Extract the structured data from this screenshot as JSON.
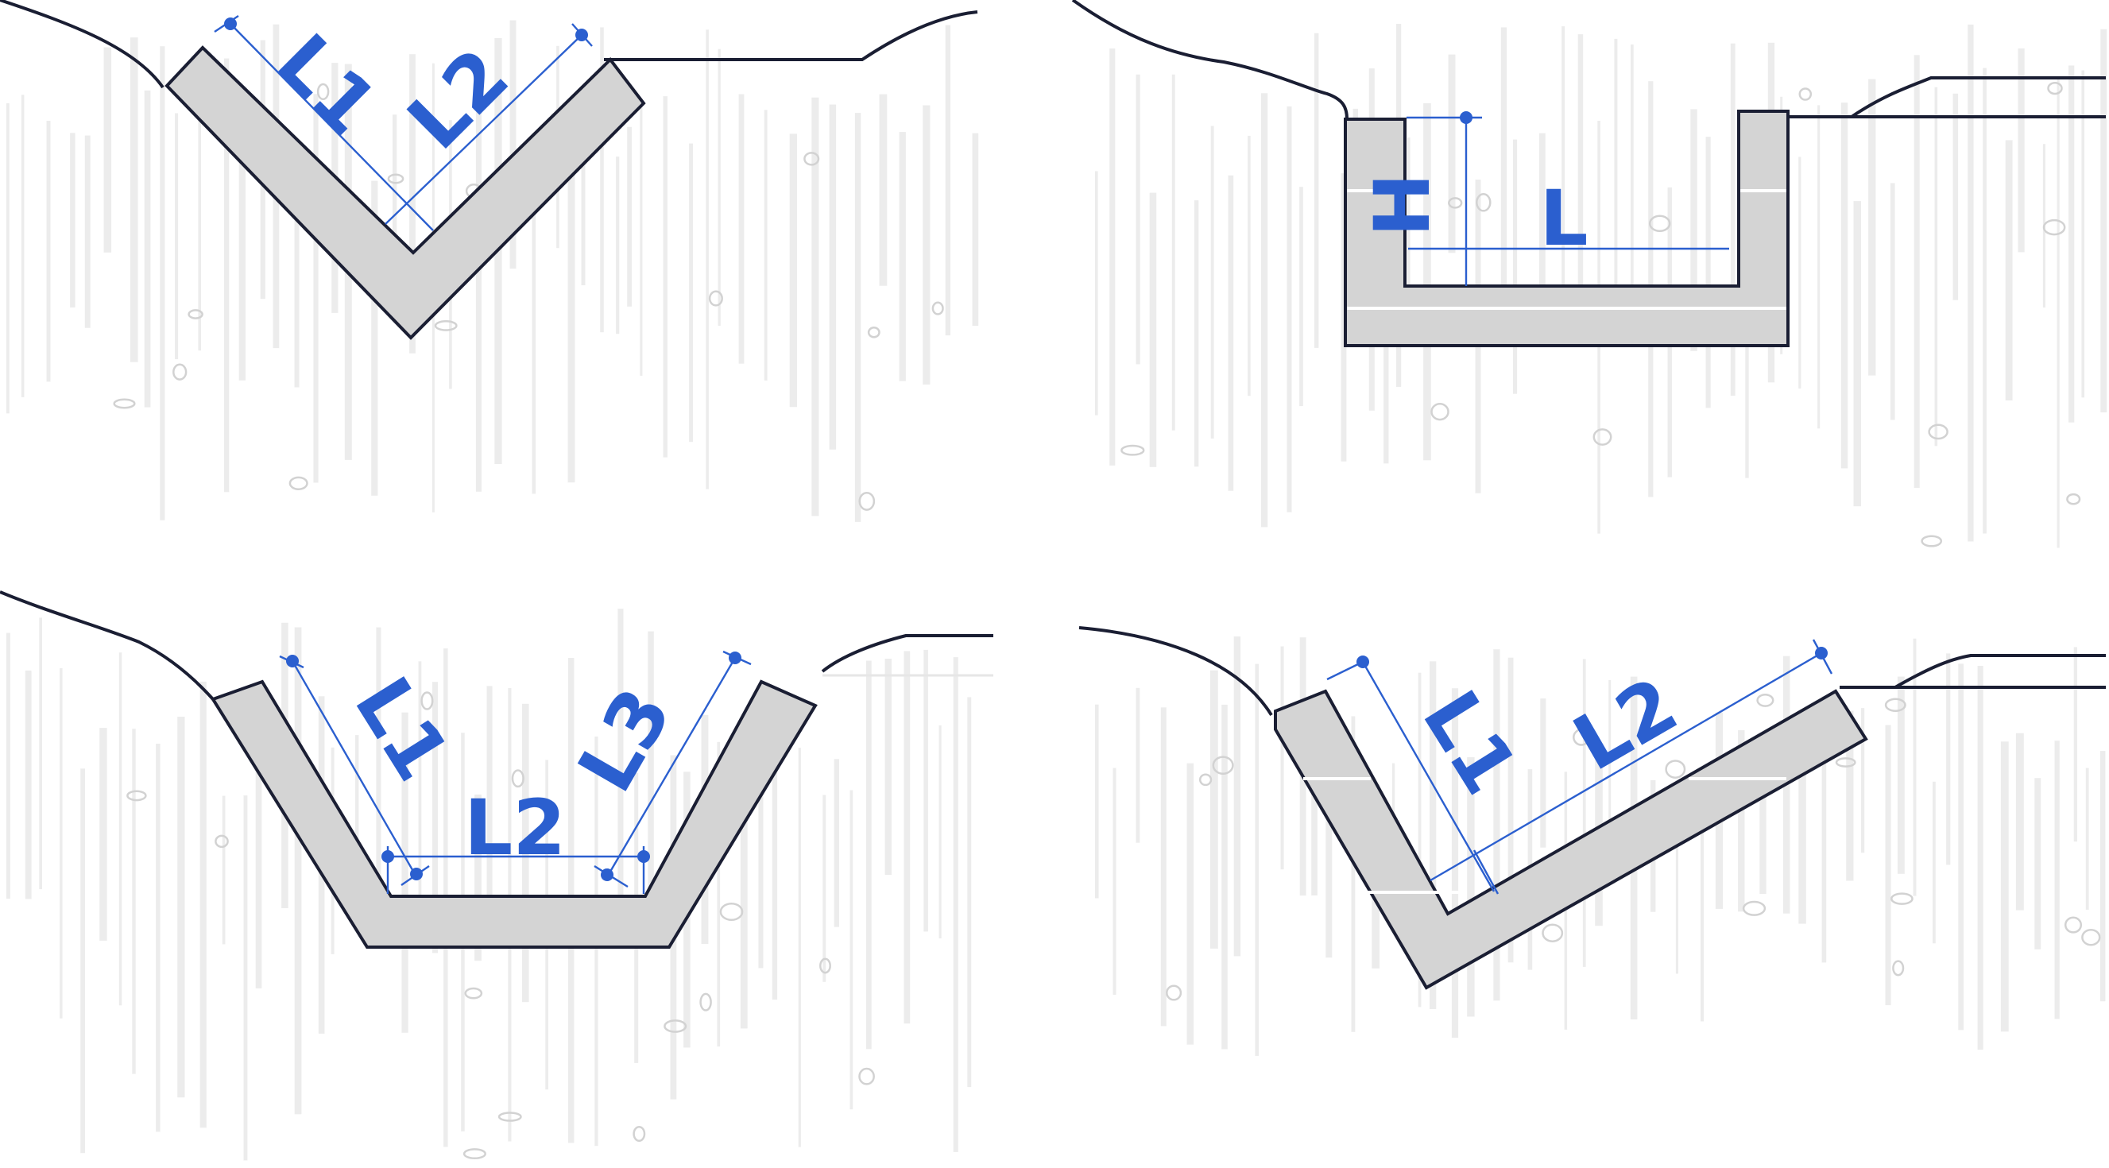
{
  "diagrams": [
    {
      "id": "v-shape",
      "labels": [
        "L1",
        "L2"
      ]
    },
    {
      "id": "rectangular",
      "labels": [
        "H",
        "L"
      ]
    },
    {
      "id": "trapezoidal",
      "labels": [
        "L1",
        "L2",
        "L3"
      ]
    },
    {
      "id": "asymmetric-v",
      "labels": [
        "L1",
        "L2"
      ]
    }
  ],
  "colors": {
    "dimension": "#2b5fcf",
    "concrete": "#d4d4d4",
    "outline": "#1a1e33",
    "soil_hatch": "#ececec"
  }
}
